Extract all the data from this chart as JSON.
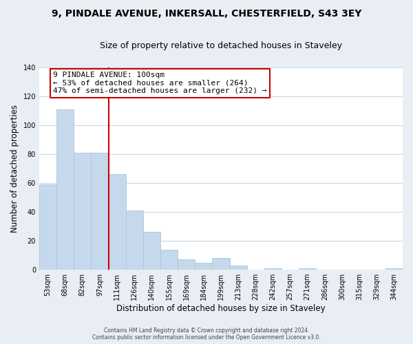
{
  "title_line1": "9, PINDALE AVENUE, INKERSALL, CHESTERFIELD, S43 3EY",
  "title_line2": "Size of property relative to detached houses in Staveley",
  "xlabel": "Distribution of detached houses by size in Staveley",
  "ylabel": "Number of detached properties",
  "footer_line1": "Contains HM Land Registry data © Crown copyright and database right 2024.",
  "footer_line2": "Contains public sector information licensed under the Open Government Licence v3.0.",
  "bar_labels": [
    "53sqm",
    "68sqm",
    "82sqm",
    "97sqm",
    "111sqm",
    "126sqm",
    "140sqm",
    "155sqm",
    "169sqm",
    "184sqm",
    "199sqm",
    "213sqm",
    "228sqm",
    "242sqm",
    "257sqm",
    "271sqm",
    "286sqm",
    "300sqm",
    "315sqm",
    "329sqm",
    "344sqm"
  ],
  "bar_values": [
    59,
    111,
    81,
    81,
    66,
    41,
    26,
    14,
    7,
    5,
    8,
    3,
    0,
    1,
    0,
    1,
    0,
    0,
    0,
    0,
    1
  ],
  "bar_color": "#c6d9ec",
  "bar_edge_color": "#a8c4de",
  "vline_color": "#cc0000",
  "annotation_text": "9 PINDALE AVENUE: 100sqm\n← 53% of detached houses are smaller (264)\n47% of semi-detached houses are larger (232) →",
  "annotation_box_color": "#ffffff",
  "annotation_box_edge": "#cc0000",
  "ylim": [
    0,
    140
  ],
  "yticks": [
    0,
    20,
    40,
    60,
    80,
    100,
    120,
    140
  ],
  "background_color": "#e8eef4",
  "plot_background": "#ffffff",
  "grid_color": "#c8d8e8",
  "title_fontsize": 10,
  "subtitle_fontsize": 9,
  "axis_label_fontsize": 8.5,
  "tick_fontsize": 7,
  "annotation_fontsize": 8
}
